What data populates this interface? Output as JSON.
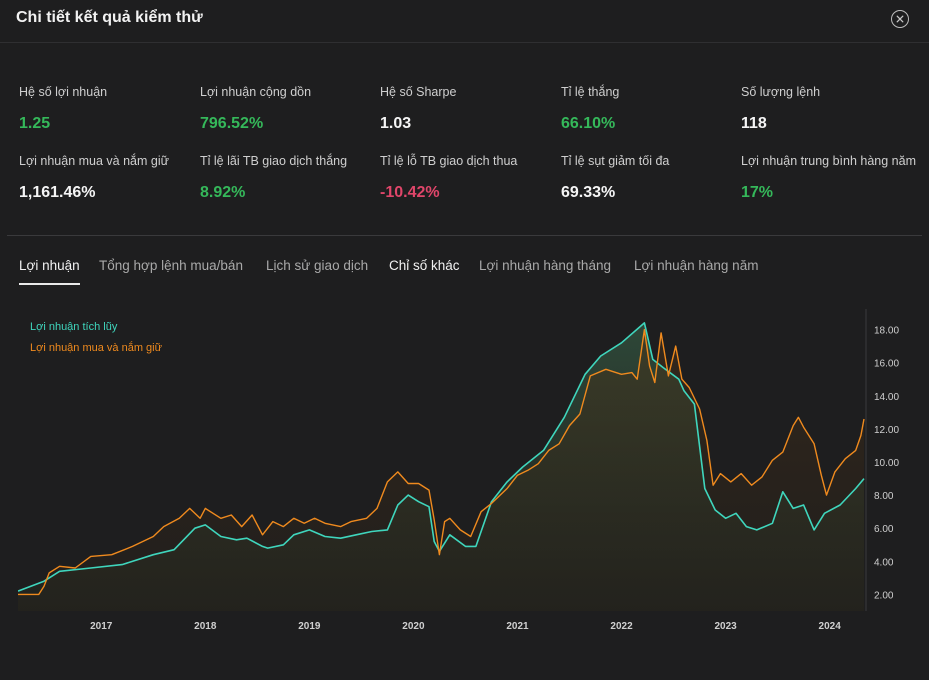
{
  "header": {
    "title": "Chi tiết kết quả kiểm thử",
    "close_icon": "close-circle-icon"
  },
  "metrics": [
    {
      "label": "Hệ số lợi nhuận",
      "value": "1.25",
      "color": "#35b85a"
    },
    {
      "label": "Lợi nhuận cộng dồn",
      "value": "796.52%",
      "color": "#35b85a"
    },
    {
      "label": "Hệ số Sharpe",
      "value": "1.03",
      "color": "#f5f5f5"
    },
    {
      "label": "Tỉ lệ thắng",
      "value": "66.10%",
      "color": "#35b85a"
    },
    {
      "label": "Số lượng lệnh",
      "value": "118",
      "color": "#f5f5f5"
    },
    {
      "label": "Lợi nhuận mua và nắm giữ",
      "value": "1,161.46%",
      "color": "#f5f5f5"
    },
    {
      "label": "Tỉ lệ lãi TB giao dịch thắng",
      "value": "8.92%",
      "color": "#35b85a"
    },
    {
      "label": "Tỉ lệ lỗ TB giao dịch thua",
      "value": "-10.42%",
      "color": "#e0466a"
    },
    {
      "label": "Tỉ lệ sụt giảm tối đa",
      "value": "69.33%",
      "color": "#f5f5f5"
    },
    {
      "label": "Lợi nhuận trung bình hàng năm",
      "value": "17%",
      "color": "#35b85a"
    }
  ],
  "tabs": [
    {
      "label": "Lợi nhuận",
      "active": true
    },
    {
      "label": "Tổng hợp lệnh mua/bán",
      "active": false
    },
    {
      "label": "Lịch sử giao dịch",
      "active": false
    },
    {
      "label": "Chỉ số khác",
      "active": false
    },
    {
      "label": "Lợi nhuận hàng tháng",
      "active": false
    },
    {
      "label": "Lợi nhuận hàng năm",
      "active": false
    }
  ],
  "chart_data": {
    "type": "area",
    "x_tick_labels": [
      "2017",
      "2018",
      "2019",
      "2020",
      "2021",
      "2022",
      "2023",
      "2024"
    ],
    "y_tick_labels": [
      "2.00",
      "4.00",
      "6.00",
      "8.00",
      "10.00",
      "12.00",
      "14.00",
      "16.00",
      "18.00"
    ],
    "ylim": [
      1.0,
      19.0
    ],
    "xlim": [
      2016.2,
      2024.33
    ],
    "legend_position": "top-left",
    "series": [
      {
        "name": "Lợi nhuận tích lũy",
        "color": "#3fd6bd",
        "points": [
          [
            2016.2,
            2.2
          ],
          [
            2016.45,
            2.8
          ],
          [
            2016.6,
            3.4
          ],
          [
            2016.9,
            3.6
          ],
          [
            2017.2,
            3.8
          ],
          [
            2017.5,
            4.4
          ],
          [
            2017.7,
            4.7
          ],
          [
            2017.9,
            6.0
          ],
          [
            2018.0,
            6.2
          ],
          [
            2018.15,
            5.5
          ],
          [
            2018.3,
            5.3
          ],
          [
            2018.4,
            5.4
          ],
          [
            2018.55,
            4.9
          ],
          [
            2018.6,
            4.8
          ],
          [
            2018.75,
            5.0
          ],
          [
            2018.85,
            5.6
          ],
          [
            2019.0,
            5.9
          ],
          [
            2019.15,
            5.5
          ],
          [
            2019.3,
            5.4
          ],
          [
            2019.45,
            5.6
          ],
          [
            2019.6,
            5.8
          ],
          [
            2019.75,
            5.9
          ],
          [
            2019.85,
            7.4
          ],
          [
            2019.95,
            8.0
          ],
          [
            2020.05,
            7.6
          ],
          [
            2020.15,
            7.3
          ],
          [
            2020.2,
            5.2
          ],
          [
            2020.25,
            4.6
          ],
          [
            2020.35,
            5.6
          ],
          [
            2020.5,
            4.9
          ],
          [
            2020.6,
            4.9
          ],
          [
            2020.75,
            7.6
          ],
          [
            2020.9,
            8.8
          ],
          [
            2021.05,
            9.7
          ],
          [
            2021.25,
            10.7
          ],
          [
            2021.45,
            12.7
          ],
          [
            2021.65,
            15.3
          ],
          [
            2021.8,
            16.4
          ],
          [
            2022.0,
            17.2
          ],
          [
            2022.22,
            18.4
          ],
          [
            2022.3,
            16.2
          ],
          [
            2022.4,
            15.7
          ],
          [
            2022.55,
            15.0
          ],
          [
            2022.6,
            14.3
          ],
          [
            2022.7,
            13.5
          ],
          [
            2022.8,
            8.4
          ],
          [
            2022.9,
            7.1
          ],
          [
            2023.0,
            6.6
          ],
          [
            2023.1,
            6.9
          ],
          [
            2023.2,
            6.1
          ],
          [
            2023.3,
            5.9
          ],
          [
            2023.45,
            6.3
          ],
          [
            2023.55,
            8.2
          ],
          [
            2023.65,
            7.2
          ],
          [
            2023.75,
            7.4
          ],
          [
            2023.85,
            5.9
          ],
          [
            2023.95,
            6.9
          ],
          [
            2024.1,
            7.4
          ],
          [
            2024.25,
            8.4
          ],
          [
            2024.33,
            9.0
          ]
        ]
      },
      {
        "name": "Lợi nhuận mua và nắm giữ",
        "color": "#ef8a1e",
        "points": [
          [
            2016.2,
            2.0
          ],
          [
            2016.4,
            2.0
          ],
          [
            2016.45,
            2.5
          ],
          [
            2016.5,
            3.3
          ],
          [
            2016.6,
            3.7
          ],
          [
            2016.75,
            3.6
          ],
          [
            2016.9,
            4.3
          ],
          [
            2017.1,
            4.4
          ],
          [
            2017.3,
            4.9
          ],
          [
            2017.5,
            5.5
          ],
          [
            2017.6,
            6.1
          ],
          [
            2017.75,
            6.6
          ],
          [
            2017.85,
            7.2
          ],
          [
            2017.95,
            6.6
          ],
          [
            2018.0,
            7.2
          ],
          [
            2018.15,
            6.6
          ],
          [
            2018.25,
            6.8
          ],
          [
            2018.35,
            6.1
          ],
          [
            2018.45,
            6.8
          ],
          [
            2018.55,
            5.6
          ],
          [
            2018.65,
            6.4
          ],
          [
            2018.75,
            6.1
          ],
          [
            2018.85,
            6.6
          ],
          [
            2018.95,
            6.3
          ],
          [
            2019.05,
            6.6
          ],
          [
            2019.15,
            6.3
          ],
          [
            2019.3,
            6.1
          ],
          [
            2019.4,
            6.4
          ],
          [
            2019.55,
            6.6
          ],
          [
            2019.65,
            7.2
          ],
          [
            2019.75,
            8.8
          ],
          [
            2019.85,
            9.4
          ],
          [
            2019.95,
            8.7
          ],
          [
            2020.05,
            8.7
          ],
          [
            2020.15,
            8.3
          ],
          [
            2020.2,
            6.5
          ],
          [
            2020.25,
            4.4
          ],
          [
            2020.3,
            6.4
          ],
          [
            2020.35,
            6.6
          ],
          [
            2020.45,
            5.9
          ],
          [
            2020.55,
            5.5
          ],
          [
            2020.65,
            7.0
          ],
          [
            2020.75,
            7.5
          ],
          [
            2020.9,
            8.4
          ],
          [
            2021.0,
            9.2
          ],
          [
            2021.1,
            9.5
          ],
          [
            2021.2,
            9.9
          ],
          [
            2021.3,
            10.7
          ],
          [
            2021.4,
            11.1
          ],
          [
            2021.5,
            12.2
          ],
          [
            2021.6,
            12.9
          ],
          [
            2021.7,
            15.2
          ],
          [
            2021.85,
            15.6
          ],
          [
            2022.0,
            15.3
          ],
          [
            2022.1,
            15.4
          ],
          [
            2022.15,
            15.0
          ],
          [
            2022.22,
            18.0
          ],
          [
            2022.27,
            15.8
          ],
          [
            2022.32,
            14.8
          ],
          [
            2022.38,
            17.8
          ],
          [
            2022.45,
            15.2
          ],
          [
            2022.52,
            17.0
          ],
          [
            2022.58,
            15.0
          ],
          [
            2022.65,
            14.5
          ],
          [
            2022.75,
            13.2
          ],
          [
            2022.82,
            11.3
          ],
          [
            2022.88,
            8.6
          ],
          [
            2022.95,
            9.3
          ],
          [
            2023.05,
            8.8
          ],
          [
            2023.15,
            9.3
          ],
          [
            2023.25,
            8.6
          ],
          [
            2023.35,
            9.1
          ],
          [
            2023.45,
            10.1
          ],
          [
            2023.55,
            10.6
          ],
          [
            2023.65,
            12.2
          ],
          [
            2023.7,
            12.7
          ],
          [
            2023.75,
            12.1
          ],
          [
            2023.85,
            11.1
          ],
          [
            2023.92,
            9.2
          ],
          [
            2023.97,
            8.0
          ],
          [
            2024.05,
            9.4
          ],
          [
            2024.15,
            10.2
          ],
          [
            2024.25,
            10.7
          ],
          [
            2024.3,
            11.6
          ],
          [
            2024.33,
            12.6
          ]
        ]
      }
    ]
  }
}
